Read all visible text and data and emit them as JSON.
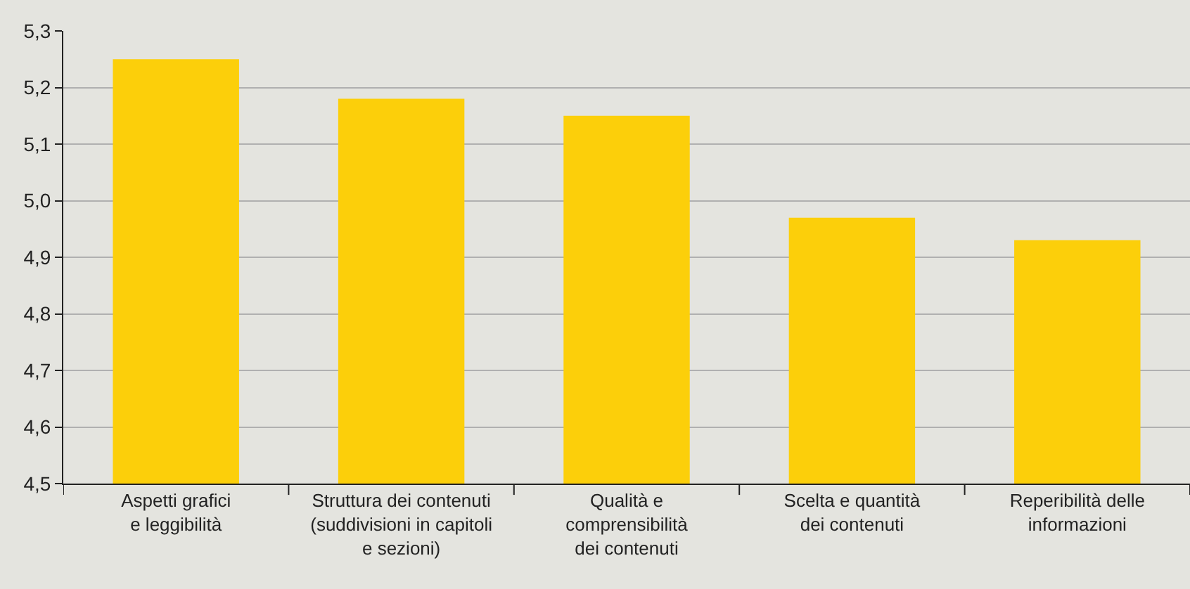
{
  "chart_data": {
    "type": "bar",
    "categories": [
      "Aspetti grafici\ne leggibilità",
      "Struttura dei contenuti\n(suddivisioni in capitoli\ne sezioni)",
      "Qualità e\ncomprensibilità\ndei contenuti",
      "Scelta e quantità\ndei contenuti",
      "Reperibilità delle\ninformazioni"
    ],
    "values": [
      5.25,
      5.18,
      5.15,
      4.97,
      4.93
    ],
    "color": "#fccf0a",
    "ylim": [
      4.5,
      5.3
    ],
    "yticks": [
      {
        "value": 4.5,
        "label": "4,5"
      },
      {
        "value": 4.6,
        "label": "4,6"
      },
      {
        "value": 4.7,
        "label": "4,7"
      },
      {
        "value": 4.8,
        "label": "4,8"
      },
      {
        "value": 4.9,
        "label": "4,9"
      },
      {
        "value": 5.0,
        "label": "5,0"
      },
      {
        "value": 5.1,
        "label": "5,1"
      },
      {
        "value": 5.2,
        "label": "5,2"
      },
      {
        "value": 5.3,
        "label": "5,3"
      }
    ],
    "grid": "y"
  }
}
